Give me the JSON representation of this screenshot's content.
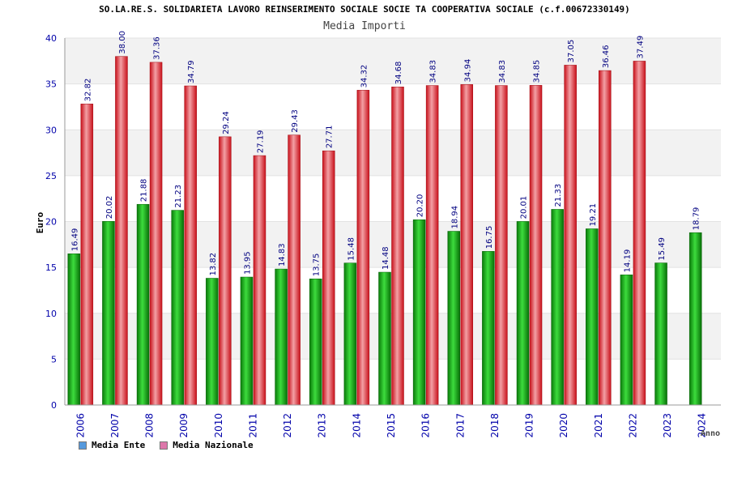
{
  "chart_data": {
    "type": "bar",
    "title": "SO.LA.RE.S. SOLIDARIETA LAVORO REINSERIMENTO SOCIALE SOCIE TA COOPERATIVA SOCIALE (c.f.00672330149)",
    "subtitle": "Media Importi",
    "xlabel": "Anno",
    "ylabel": "Euro",
    "ylim": [
      0,
      40
    ],
    "yticks": [
      "0",
      "5",
      "10",
      "15",
      "20",
      "25",
      "30",
      "35",
      "40"
    ],
    "categories": [
      "2006",
      "2007",
      "2008",
      "2009",
      "2010",
      "2011",
      "2012",
      "2013",
      "2014",
      "2015",
      "2016",
      "2017",
      "2018",
      "2019",
      "2020",
      "2021",
      "2022",
      "2023",
      "2024"
    ],
    "series": [
      {
        "name": "Media Ente",
        "color": "#0fa80f",
        "values": [
          16.49,
          20.02,
          21.88,
          21.23,
          13.82,
          13.95,
          14.83,
          13.75,
          15.48,
          14.48,
          20.2,
          18.94,
          16.75,
          20.01,
          21.33,
          19.21,
          14.19,
          15.49,
          18.79
        ],
        "labels": [
          "16.49",
          "20.02",
          "21.88",
          "21.23",
          "13.82",
          "13.95",
          "14.83",
          "13.75",
          "15.48",
          "14.48",
          "20.20",
          "18.94",
          "16.75",
          "20.01",
          "21.33",
          "19.21",
          "14.19",
          "15.49",
          "18.79"
        ]
      },
      {
        "name": "Media Nazionale",
        "color": "#e8202a",
        "values": [
          32.82,
          38.0,
          37.36,
          34.79,
          29.24,
          27.19,
          29.43,
          27.71,
          34.32,
          34.68,
          34.83,
          34.94,
          34.83,
          34.85,
          37.05,
          36.46,
          37.49,
          null,
          null
        ],
        "labels": [
          "32.82",
          "38.00",
          "37.36",
          "34.79",
          "29.24",
          "27.19",
          "29.43",
          "27.71",
          "34.32",
          "34.68",
          "34.83",
          "34.94",
          "34.83",
          "34.85",
          "37.05",
          "36.46",
          "37.49",
          "",
          ""
        ]
      }
    ],
    "grid": true,
    "legend_position": "bottom-left",
    "legend_colors": {
      "Media Ente": "#5599dd",
      "Media Nazionale": "#dd77aa"
    }
  }
}
